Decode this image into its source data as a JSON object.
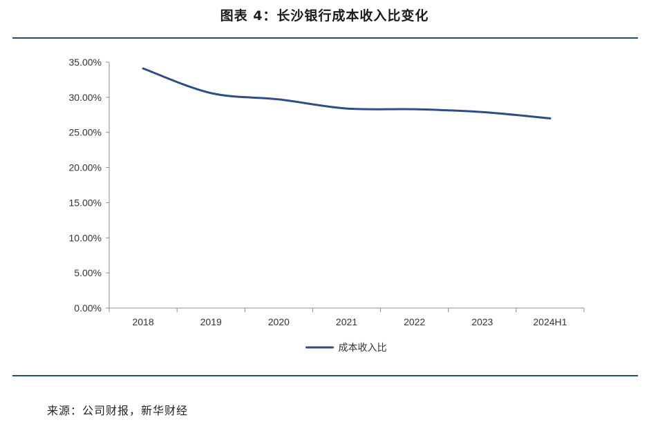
{
  "figure": {
    "title": "图表 4：长沙银行成本收入比变化",
    "source": "来源：公司财报，新华财经"
  },
  "colors": {
    "line": "#2e4d87",
    "rule": "#1f4e5f",
    "axis": "#8c8c8c"
  },
  "chart_data": {
    "type": "line",
    "title": "",
    "xlabel": "",
    "ylabel": "",
    "categories": [
      "2018",
      "2019",
      "2020",
      "2021",
      "2022",
      "2023",
      "2024H1"
    ],
    "series": [
      {
        "name": "成本收入比",
        "values": [
          34.1,
          30.6,
          29.7,
          28.4,
          28.3,
          27.9,
          27.0
        ]
      }
    ],
    "ylim": [
      0,
      35
    ],
    "yticks": [
      0,
      5,
      10,
      15,
      20,
      25,
      30,
      35
    ],
    "ytick_labels": [
      "0.00%",
      "5.00%",
      "10.00%",
      "15.00%",
      "20.00%",
      "25.00%",
      "30.00%",
      "35.00%"
    ],
    "grid": false,
    "legend_position": "bottom-center",
    "smooth": true
  }
}
